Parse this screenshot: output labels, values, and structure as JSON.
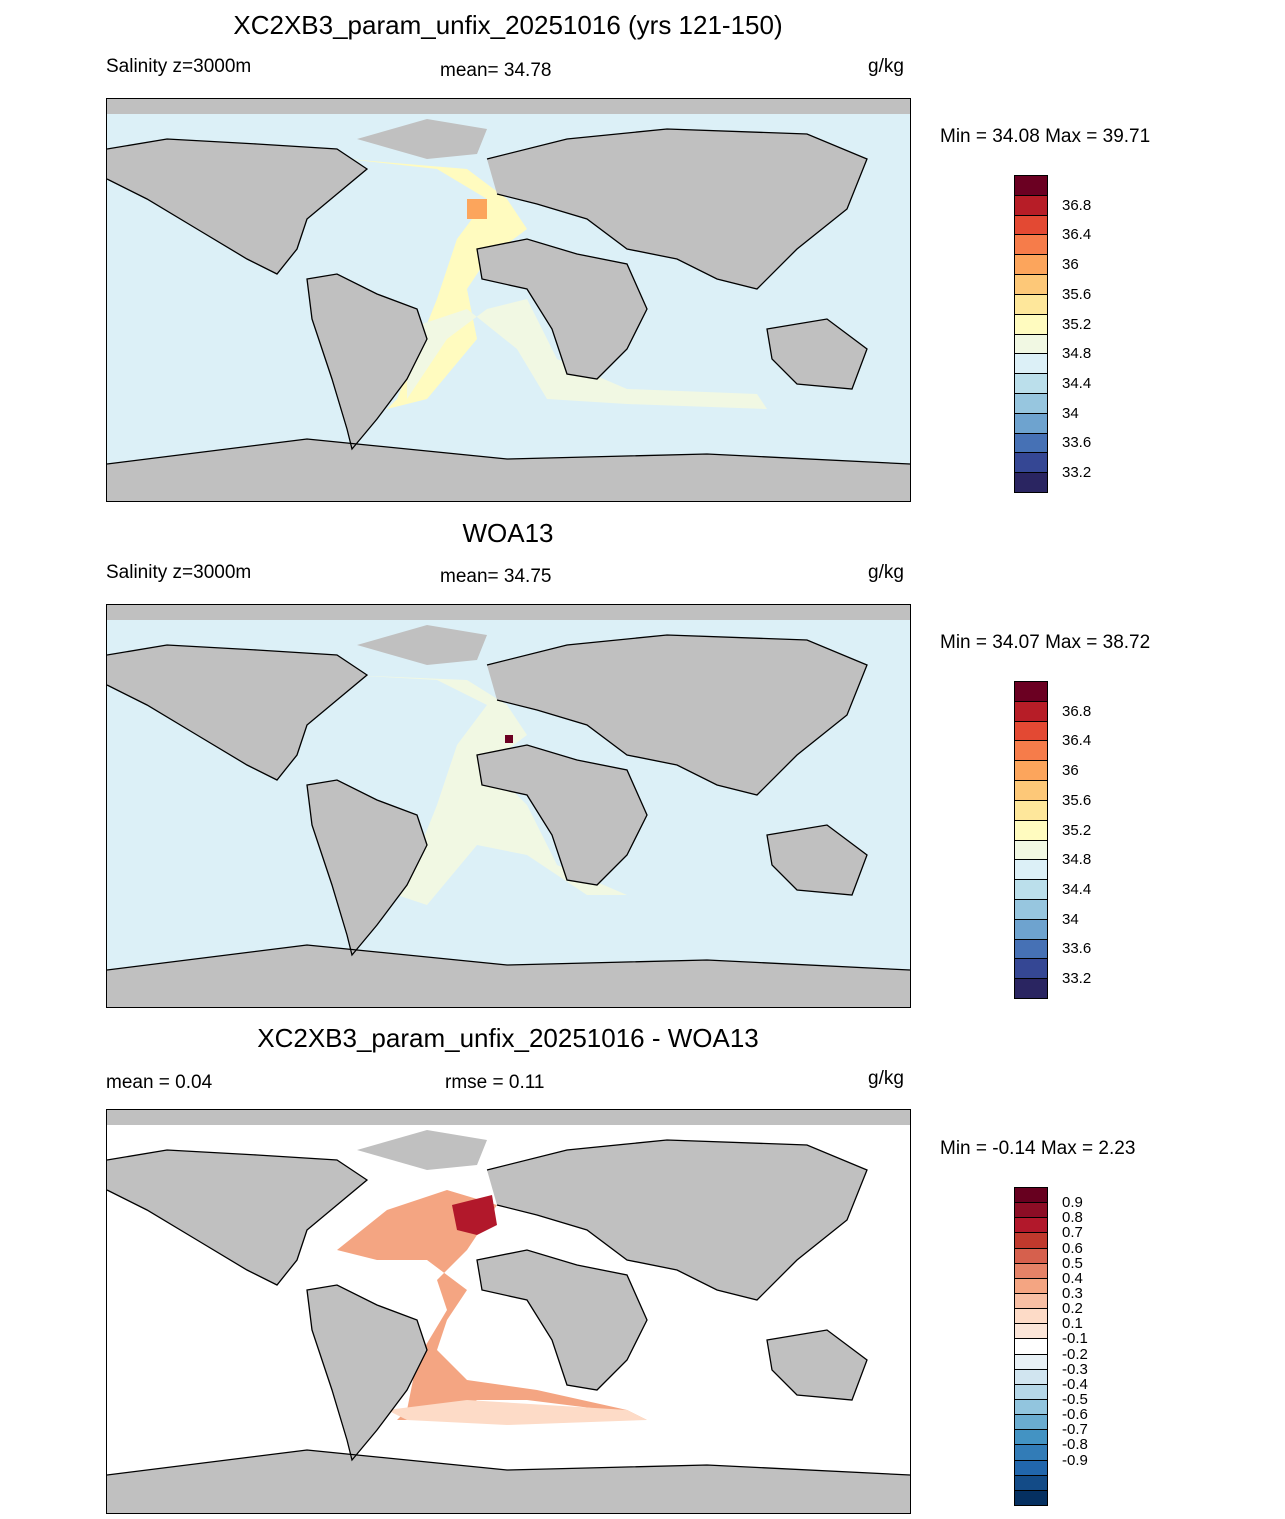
{
  "panels": [
    {
      "title": "XC2XB3_param_unfix_20251016 (yrs 121-150)",
      "left_label": "Salinity z=3000m",
      "center_label": "mean=  34.78",
      "right_label": "g/kg",
      "minmax": "Min =  34.08 Max =  39.71",
      "colorbar": {
        "colors": [
          "#2a2561",
          "#354794",
          "#4671b5",
          "#6ea3cf",
          "#97c6df",
          "#bbdfeb",
          "#dcf0f7",
          "#f1f8e3",
          "#fffbbf",
          "#fee79b",
          "#fdc878",
          "#fca55c",
          "#f67c4a",
          "#e34933",
          "#b71d27",
          "#6b0022"
        ],
        "labels": [
          "36.8",
          "36.4",
          "36",
          "35.6",
          "35.2",
          "34.8",
          "34.4",
          "34",
          "33.6",
          "33.2"
        ]
      }
    },
    {
      "title": "WOA13",
      "left_label": "Salinity z=3000m",
      "center_label": "mean=  34.75",
      "right_label": "g/kg",
      "minmax": "Min =  34.07 Max =  38.72",
      "colorbar": {
        "colors": [
          "#2a2561",
          "#354794",
          "#4671b5",
          "#6ea3cf",
          "#97c6df",
          "#bbdfeb",
          "#dcf0f7",
          "#f1f8e3",
          "#fffbbf",
          "#fee79b",
          "#fdc878",
          "#fca55c",
          "#f67c4a",
          "#e34933",
          "#b71d27",
          "#6b0022"
        ],
        "labels": [
          "36.8",
          "36.4",
          "36",
          "35.6",
          "35.2",
          "34.8",
          "34.4",
          "34",
          "33.6",
          "33.2"
        ]
      }
    },
    {
      "title": "XC2XB3_param_unfix_20251016 - WOA13",
      "left_label": "mean =   0.04",
      "center_label": "rmse =   0.11",
      "right_label": "g/kg",
      "minmax": "Min =  -0.14 Max =   2.23",
      "colorbar": {
        "colors": [
          "#053061",
          "#134b87",
          "#2166ac",
          "#327cb7",
          "#4393c3",
          "#6aacd0",
          "#92c5de",
          "#b5d7e8",
          "#d1e5f0",
          "#e8f1f6",
          "#ffffff",
          "#fbe5d8",
          "#fddbc7",
          "#f8bfa4",
          "#f4a582",
          "#e58267",
          "#d6604d",
          "#c0392d",
          "#b2182b",
          "#8c0d25",
          "#67001f"
        ],
        "labels": [
          "0.9",
          "0.8",
          "0.7",
          "0.6",
          "0.5",
          "0.4",
          "0.3",
          "0.2",
          "0.1",
          "-0.1",
          "-0.2",
          "-0.3",
          "-0.4",
          "-0.5",
          "-0.6",
          "-0.7",
          "-0.8",
          "-0.9"
        ]
      }
    }
  ],
  "map_colors": {
    "land": "#c0c0c0",
    "ocean_base_1": "#dcf0f7",
    "ocean_base_2": "#dcf0f7",
    "ocean_base_3": "#ffffff",
    "atlantic_1": "#fffbbf",
    "south_atlantic_1": "#f1f8e3",
    "atlantic_2": "#f1f8e3",
    "med_1": "#fca55c",
    "med_2": "#6b0022",
    "diff_positive": "#f4a582",
    "diff_strong": "#b2182b",
    "diff_weak": "#fddbc7"
  }
}
